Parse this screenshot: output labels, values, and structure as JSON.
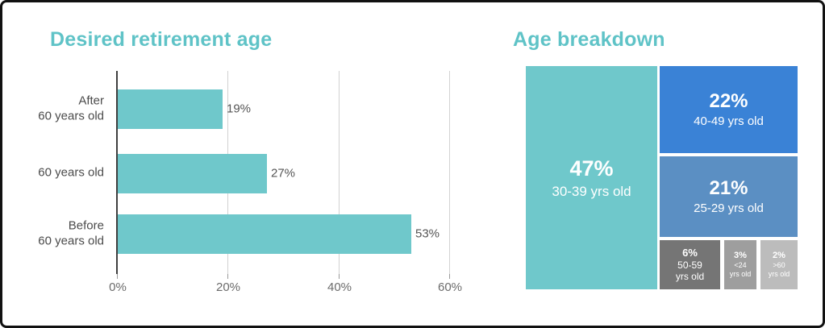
{
  "bar_chart": {
    "title": "Desired retirement age",
    "title_color": "#5fc3c7",
    "bar_color": "#6fc8cb",
    "categories": [
      {
        "label": "After\n60 years old",
        "value_label": "19%"
      },
      {
        "label": "60 years old",
        "value_label": "27%"
      },
      {
        "label": "Before\n60 years old",
        "value_label": "53%"
      }
    ],
    "x_ticks": [
      "0%",
      "20%",
      "40%",
      "60%"
    ]
  },
  "treemap": {
    "title": "Age breakdown",
    "title_color": "#5fc3c7",
    "blocks": [
      {
        "pct": "47%",
        "label": "30-39 yrs old",
        "color": "#6fc8cb"
      },
      {
        "pct": "22%",
        "label": "40-49 yrs old",
        "color": "#3a82d6"
      },
      {
        "pct": "21%",
        "label": "25-29 yrs old",
        "color": "#5b8fc3"
      },
      {
        "pct": "6%",
        "label": "50-59\nyrs old",
        "color": "#757575"
      },
      {
        "pct": "3%",
        "label": "<24\nyrs old",
        "color": "#9e9e9e"
      },
      {
        "pct": "2%",
        "label": ">60\nyrs old",
        "color": "#bcbcbc"
      }
    ]
  },
  "chart_data": [
    {
      "type": "bar",
      "orientation": "horizontal",
      "title": "Desired retirement age",
      "categories": [
        "After 60 years old",
        "60 years old",
        "Before 60 years old"
      ],
      "values": [
        19,
        27,
        53
      ],
      "value_labels": [
        "19%",
        "27%",
        "53%"
      ],
      "xlabel": "",
      "ylabel": "",
      "xlim": [
        0,
        60
      ],
      "x_tick_labels": [
        "0%",
        "20%",
        "40%",
        "60%"
      ],
      "grid": true,
      "bar_color": "#6fc8cb",
      "legend": false
    },
    {
      "type": "treemap",
      "title": "Age breakdown",
      "slices": [
        {
          "label": "30-39 yrs old",
          "value": 47,
          "color": "#6fc8cb"
        },
        {
          "label": "40-49 yrs old",
          "value": 22,
          "color": "#3a82d6"
        },
        {
          "label": "25-29 yrs old",
          "value": 21,
          "color": "#5b8fc3"
        },
        {
          "label": "50-59 yrs old",
          "value": 6,
          "color": "#757575"
        },
        {
          "label": "<24 yrs old",
          "value": 3,
          "color": "#9e9e9e"
        },
        {
          "label": ">60 yrs old",
          "value": 2,
          "color": "#bcbcbc"
        }
      ]
    }
  ]
}
